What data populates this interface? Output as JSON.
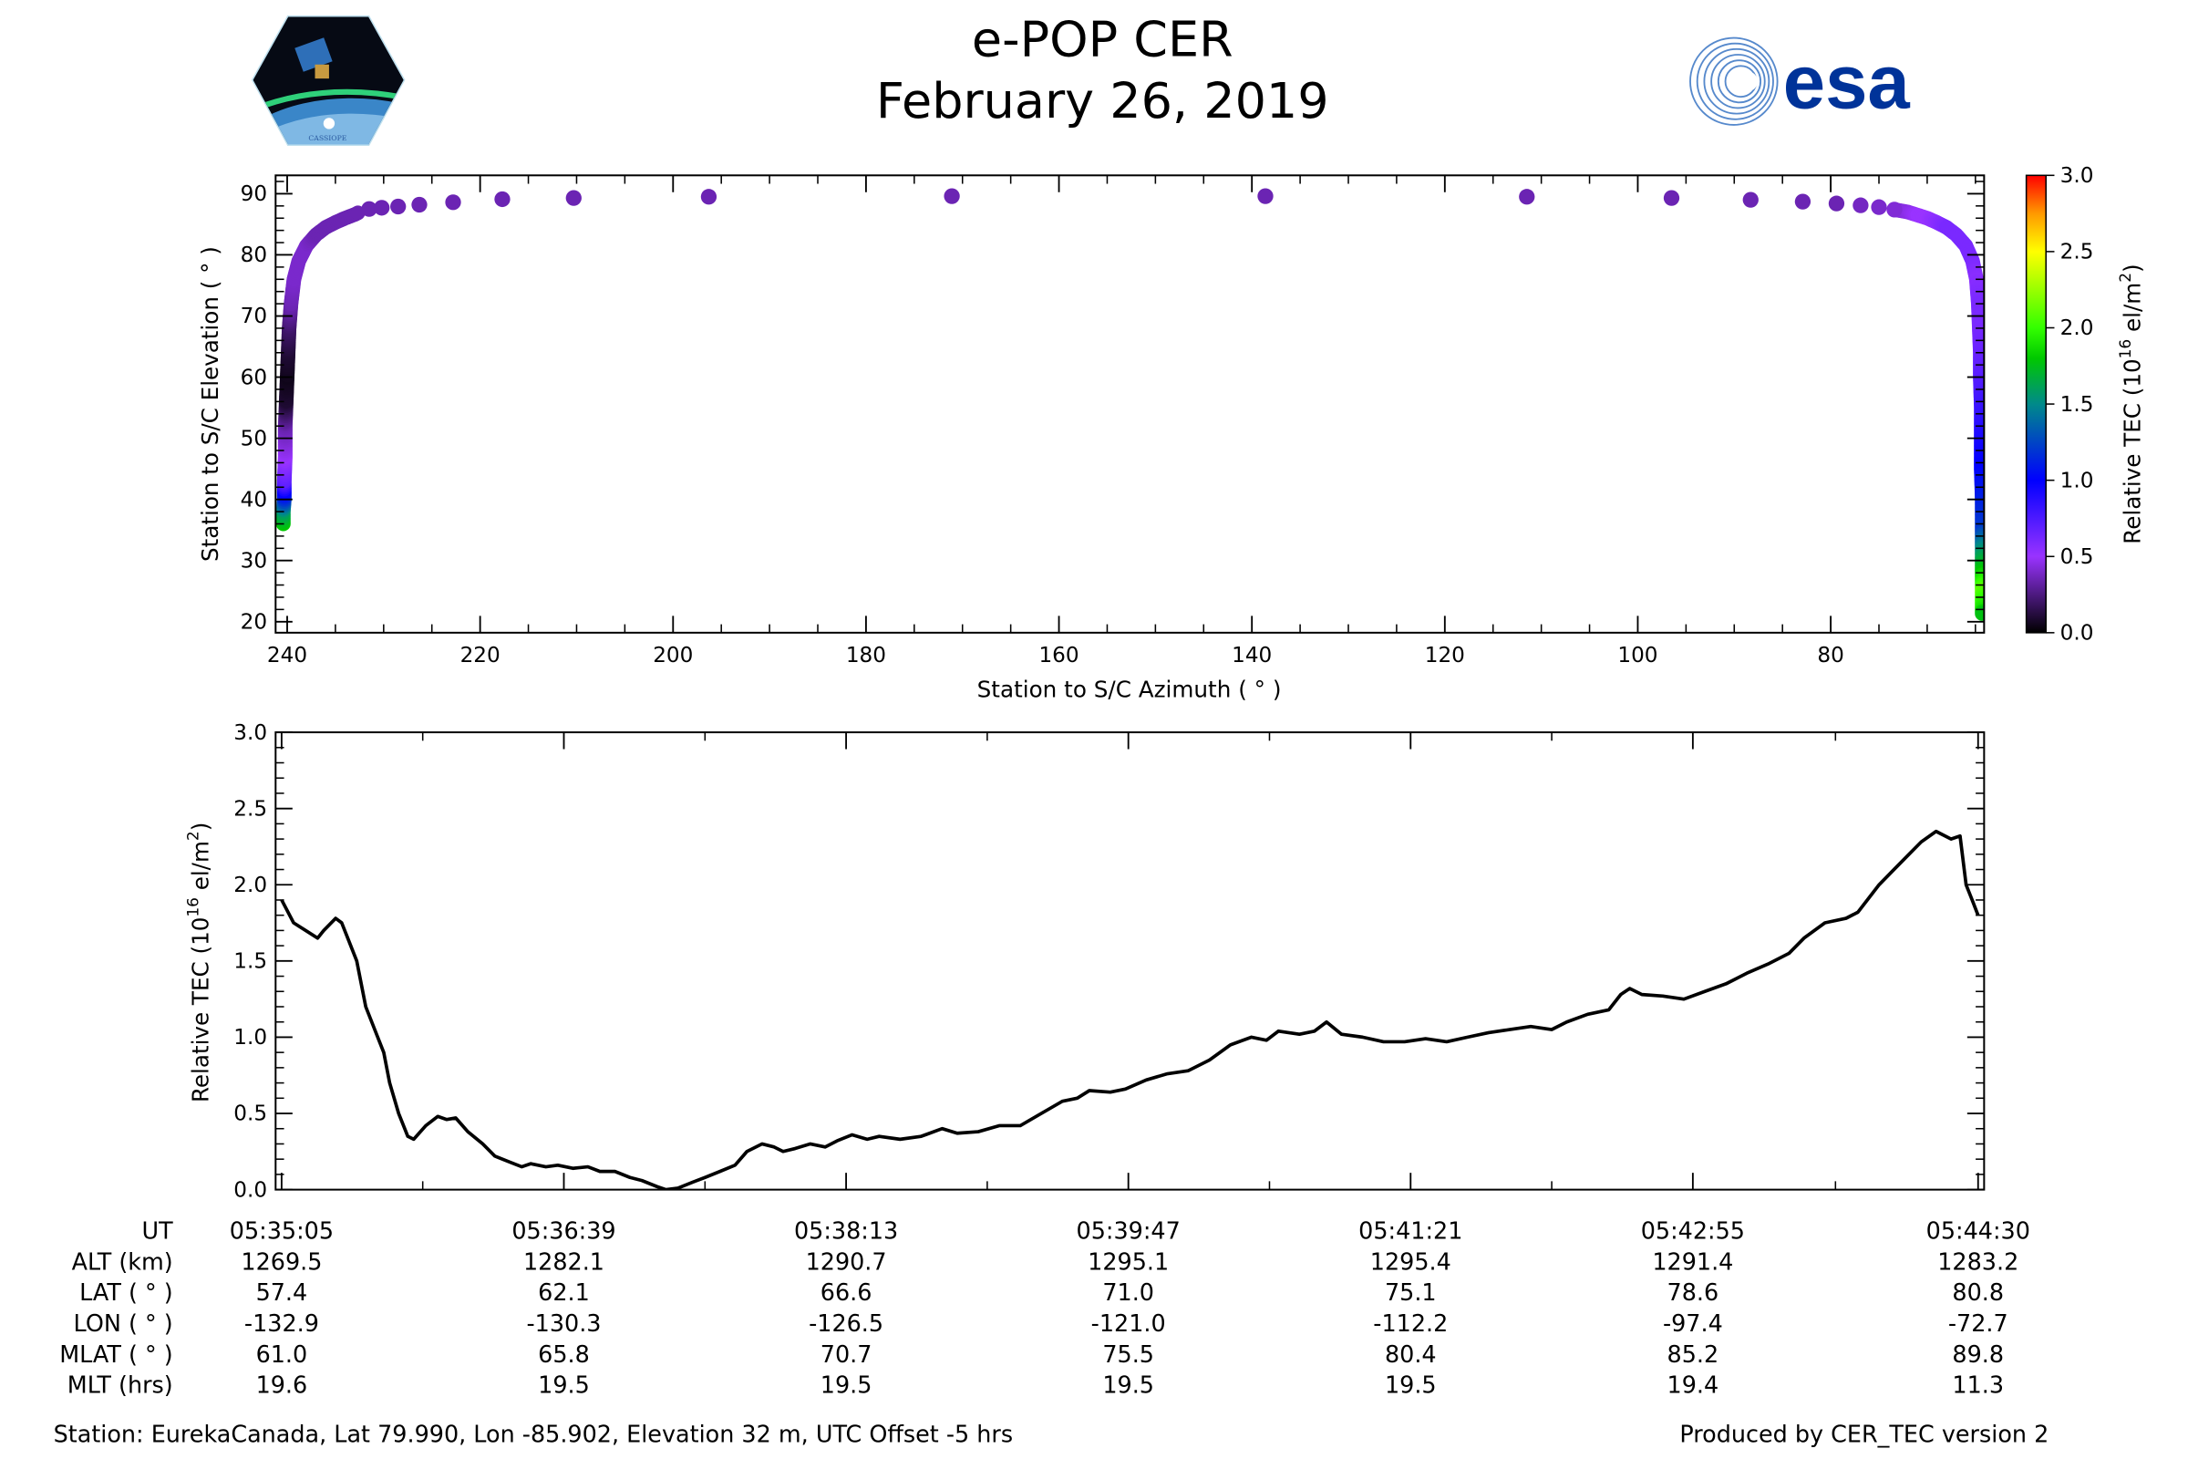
{
  "header": {
    "title": "e-POP CER",
    "date": "February 26, 2019"
  },
  "logos": {
    "left_text": "CASSIOPE",
    "right_text": "esa",
    "esa_color": "#003399"
  },
  "colormap": [
    [
      0.0,
      "#000000"
    ],
    [
      0.5,
      "#9933ff"
    ],
    [
      1.0,
      "#0000ff"
    ],
    [
      1.5,
      "#008a8a"
    ],
    [
      1.8,
      "#00c800"
    ],
    [
      2.0,
      "#33ff00"
    ],
    [
      2.5,
      "#ffff00"
    ],
    [
      2.75,
      "#ff9900"
    ],
    [
      3.0,
      "#ff0000"
    ]
  ],
  "chart_data": [
    {
      "type": "scatter",
      "xlabel": "Station to S/C Azimuth ( ° )",
      "ylabel": "Station to S/C Elevation ( ° )",
      "xlim": [
        241.2,
        64.1
      ],
      "ylim": [
        18.2,
        93.0
      ],
      "xticks": [
        240,
        220,
        200,
        180,
        160,
        140,
        120,
        100,
        80
      ],
      "yticks": [
        20,
        30,
        40,
        50,
        60,
        70,
        80,
        90
      ],
      "colorbar": {
        "label_parts": [
          "Relative TEC (10",
          "16",
          " el/m",
          "2",
          ")"
        ],
        "range": [
          0,
          3
        ],
        "ticks": [
          "0.0",
          "0.5",
          "1.0",
          "1.5",
          "2.0",
          "2.5",
          "3.0"
        ]
      },
      "points_columns": [
        "azimuth",
        "elevation",
        "tec"
      ],
      "left_arc": [
        [
          240.4,
          36,
          1.8
        ],
        [
          240.4,
          38,
          1.6
        ],
        [
          240.3,
          40,
          1.2
        ],
        [
          240.3,
          43,
          0.7
        ],
        [
          240.2,
          47,
          0.5
        ],
        [
          240.2,
          52,
          0.35
        ],
        [
          240.1,
          56,
          0.1
        ],
        [
          240.0,
          60,
          0.05
        ],
        [
          239.9,
          64,
          0.1
        ],
        [
          239.8,
          68,
          0.2
        ],
        [
          239.6,
          72,
          0.35
        ],
        [
          239.3,
          76,
          0.4
        ],
        [
          238.8,
          79,
          0.4
        ],
        [
          238.0,
          81.5,
          0.4
        ],
        [
          237.0,
          83.3,
          0.35
        ],
        [
          236.0,
          84.5,
          0.35
        ],
        [
          235.0,
          85.3,
          0.35
        ],
        [
          234.0,
          86.0,
          0.35
        ],
        [
          233.0,
          86.6,
          0.35
        ],
        [
          232.5,
          87.0,
          0.35
        ]
      ],
      "dots": [
        [
          231.5,
          87.5,
          0.35
        ],
        [
          230.2,
          87.7,
          0.35
        ],
        [
          228.5,
          87.9,
          0.35
        ],
        [
          226.3,
          88.2,
          0.35
        ],
        [
          222.8,
          88.6,
          0.35
        ],
        [
          217.7,
          89.1,
          0.35
        ],
        [
          210.3,
          89.3,
          0.35
        ],
        [
          196.3,
          89.5,
          0.35
        ],
        [
          171.1,
          89.6,
          0.35
        ],
        [
          138.6,
          89.6,
          0.35
        ],
        [
          111.5,
          89.5,
          0.35
        ],
        [
          96.5,
          89.3,
          0.35
        ],
        [
          88.3,
          89.0,
          0.35
        ],
        [
          82.9,
          88.7,
          0.35
        ],
        [
          79.4,
          88.4,
          0.35
        ],
        [
          76.9,
          88.1,
          0.38
        ],
        [
          75.0,
          87.8,
          0.4
        ],
        [
          73.4,
          87.4,
          0.42
        ]
      ],
      "right_arc": [
        [
          73.4,
          87.4,
          0.42
        ],
        [
          72,
          87,
          0.45
        ],
        [
          71,
          86.5,
          0.5
        ],
        [
          70,
          86,
          0.5
        ],
        [
          69,
          85.3,
          0.55
        ],
        [
          68,
          84.5,
          0.6
        ],
        [
          67,
          83.3,
          0.6
        ],
        [
          66,
          81.5,
          0.6
        ],
        [
          65.3,
          79,
          0.6
        ],
        [
          64.9,
          76,
          0.55
        ],
        [
          64.7,
          72,
          0.6
        ],
        [
          64.6,
          68,
          0.6
        ],
        [
          64.5,
          64,
          0.65
        ],
        [
          64.5,
          60,
          0.7
        ],
        [
          64.4,
          55,
          0.8
        ],
        [
          64.4,
          50,
          0.9
        ],
        [
          64.4,
          45,
          1.0
        ],
        [
          64.3,
          40,
          1.1
        ],
        [
          64.3,
          35,
          1.2
        ],
        [
          64.3,
          32,
          1.5
        ],
        [
          64.3,
          28,
          1.8
        ],
        [
          64.3,
          25,
          2.1
        ],
        [
          64.3,
          22,
          1.9
        ],
        [
          64.3,
          21,
          1.7
        ]
      ]
    },
    {
      "type": "line",
      "ylabel_parts": [
        "Relative TEC (10",
        "16",
        " el/m",
        "2",
        ")"
      ],
      "x_unit": "seconds after 05:35:05 UT",
      "xlim": [
        -2,
        567
      ],
      "ylim": [
        0,
        3
      ],
      "yticks": [
        "0.0",
        "0.5",
        "1.0",
        "1.5",
        "2.0",
        "2.5",
        "3.0"
      ],
      "xticks_s": [
        0,
        94,
        188,
        282,
        376,
        470,
        565
      ],
      "x": [
        0,
        4,
        8,
        12,
        14,
        18,
        20,
        25,
        28,
        32,
        34,
        36,
        39,
        42,
        44,
        48,
        52,
        55,
        58,
        62,
        67,
        71,
        76,
        80,
        83,
        88,
        92,
        97,
        102,
        106,
        111,
        116,
        120,
        125,
        128,
        132,
        137,
        141,
        146,
        151,
        155,
        160,
        164,
        167,
        171,
        176,
        181,
        185,
        190,
        195,
        199,
        206,
        213,
        220,
        225,
        232,
        239,
        246,
        253,
        260,
        265,
        269,
        276,
        281,
        288,
        295,
        302,
        309,
        316,
        323,
        328,
        332,
        339,
        344,
        348,
        353,
        360,
        367,
        374,
        381,
        388,
        395,
        402,
        409,
        416,
        423,
        428,
        435,
        442,
        446,
        449,
        453,
        460,
        467,
        474,
        481,
        488,
        495,
        502,
        507,
        514,
        521,
        525,
        532,
        537,
        542,
        546,
        551,
        556,
        559,
        561,
        563,
        565
      ],
      "y": [
        1.9,
        1.75,
        1.7,
        1.65,
        1.7,
        1.78,
        1.75,
        1.5,
        1.2,
        1.0,
        0.9,
        0.7,
        0.5,
        0.35,
        0.33,
        0.42,
        0.48,
        0.46,
        0.47,
        0.38,
        0.3,
        0.22,
        0.18,
        0.15,
        0.17,
        0.15,
        0.16,
        0.14,
        0.15,
        0.12,
        0.12,
        0.08,
        0.06,
        0.02,
        0.0,
        0.01,
        0.05,
        0.08,
        0.12,
        0.16,
        0.25,
        0.3,
        0.28,
        0.25,
        0.27,
        0.3,
        0.28,
        0.32,
        0.36,
        0.33,
        0.35,
        0.33,
        0.35,
        0.4,
        0.37,
        0.38,
        0.42,
        0.42,
        0.5,
        0.58,
        0.6,
        0.65,
        0.64,
        0.66,
        0.72,
        0.76,
        0.78,
        0.85,
        0.95,
        1.0,
        0.98,
        1.04,
        1.02,
        1.04,
        1.1,
        1.02,
        1.0,
        0.97,
        0.97,
        0.99,
        0.97,
        1.0,
        1.03,
        1.05,
        1.07,
        1.05,
        1.1,
        1.15,
        1.18,
        1.28,
        1.32,
        1.28,
        1.27,
        1.25,
        1.3,
        1.35,
        1.42,
        1.48,
        1.55,
        1.65,
        1.75,
        1.78,
        1.82,
        2.0,
        2.1,
        2.2,
        2.28,
        2.35,
        2.3,
        2.32,
        2.0,
        1.9,
        1.8
      ],
      "line_color": "#000000"
    }
  ],
  "table": {
    "rows": [
      {
        "label": "UT",
        "values": [
          "05:35:05",
          "05:36:39",
          "05:38:13",
          "05:39:47",
          "05:41:21",
          "05:42:55",
          "05:44:30"
        ]
      },
      {
        "label": "ALT (km)",
        "values": [
          "1269.5",
          "1282.1",
          "1290.7",
          "1295.1",
          "1295.4",
          "1291.4",
          "1283.2"
        ]
      },
      {
        "label": "LAT ( ° )",
        "values": [
          "57.4",
          "62.1",
          "66.6",
          "71.0",
          "75.1",
          "78.6",
          "80.8"
        ]
      },
      {
        "label": "LON ( ° )",
        "values": [
          "-132.9",
          "-130.3",
          "-126.5",
          "-121.0",
          "-112.2",
          "-97.4",
          "-72.7"
        ]
      },
      {
        "label": "MLAT ( ° )",
        "values": [
          "61.0",
          "65.8",
          "70.7",
          "75.5",
          "80.4",
          "85.2",
          "89.8"
        ]
      },
      {
        "label": "MLT (hrs)",
        "values": [
          "19.6",
          "19.5",
          "19.5",
          "19.5",
          "19.5",
          "19.4",
          "11.3"
        ]
      }
    ]
  },
  "footer": {
    "station": "Station: EurekaCanada, Lat 79.990, Lon -85.902, Elevation 32 m, UTC Offset -5 hrs",
    "produced": "Produced by CER_TEC version 2"
  }
}
